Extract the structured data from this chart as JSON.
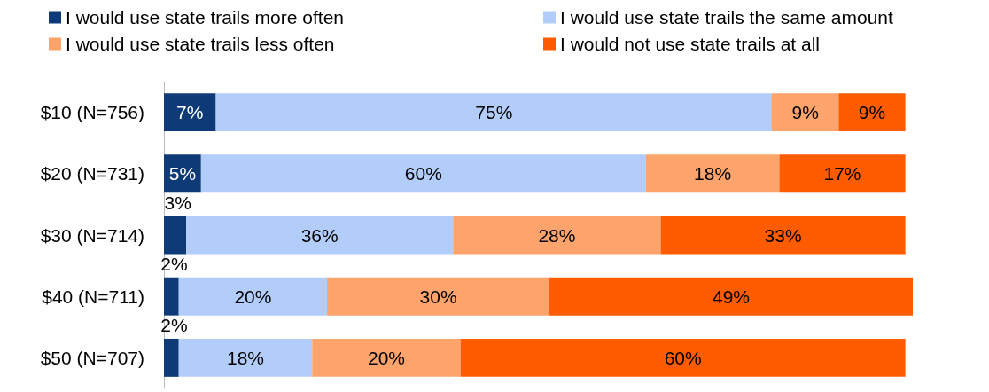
{
  "chart_data": {
    "type": "bar",
    "orientation": "horizontal",
    "stacked": true,
    "legend": "top",
    "grid": false,
    "xlim": [
      0,
      101
    ],
    "categories": [
      "$10 (N=756)",
      "$20 (N=731)",
      "$30 (N=714)",
      "$40 (N=711)",
      "$50 (N=707)"
    ],
    "series": [
      {
        "name": "I would use state trails more often",
        "color": "#0e3a78",
        "values": [
          7,
          5,
          3,
          2,
          2
        ],
        "value_labels": [
          "7%",
          "5%",
          "3%",
          "2%",
          "2%"
        ]
      },
      {
        "name": "I would use state trails the same amount",
        "color": "#b3cdfb",
        "values": [
          75,
          60,
          36,
          20,
          18
        ],
        "value_labels": [
          "75%",
          "60%",
          "36%",
          "20%",
          "18%"
        ]
      },
      {
        "name": "I would use state trails less often",
        "color": "#fda36c",
        "values": [
          9,
          18,
          28,
          30,
          20
        ],
        "value_labels": [
          "9%",
          "18%",
          "28%",
          "30%",
          "20%"
        ]
      },
      {
        "name": "I would not use state trails at all",
        "color": "#ff5b00",
        "values": [
          9,
          17,
          33,
          49,
          60
        ],
        "value_labels": [
          "9%",
          "17%",
          "33%",
          "49%",
          "60%"
        ]
      }
    ]
  }
}
